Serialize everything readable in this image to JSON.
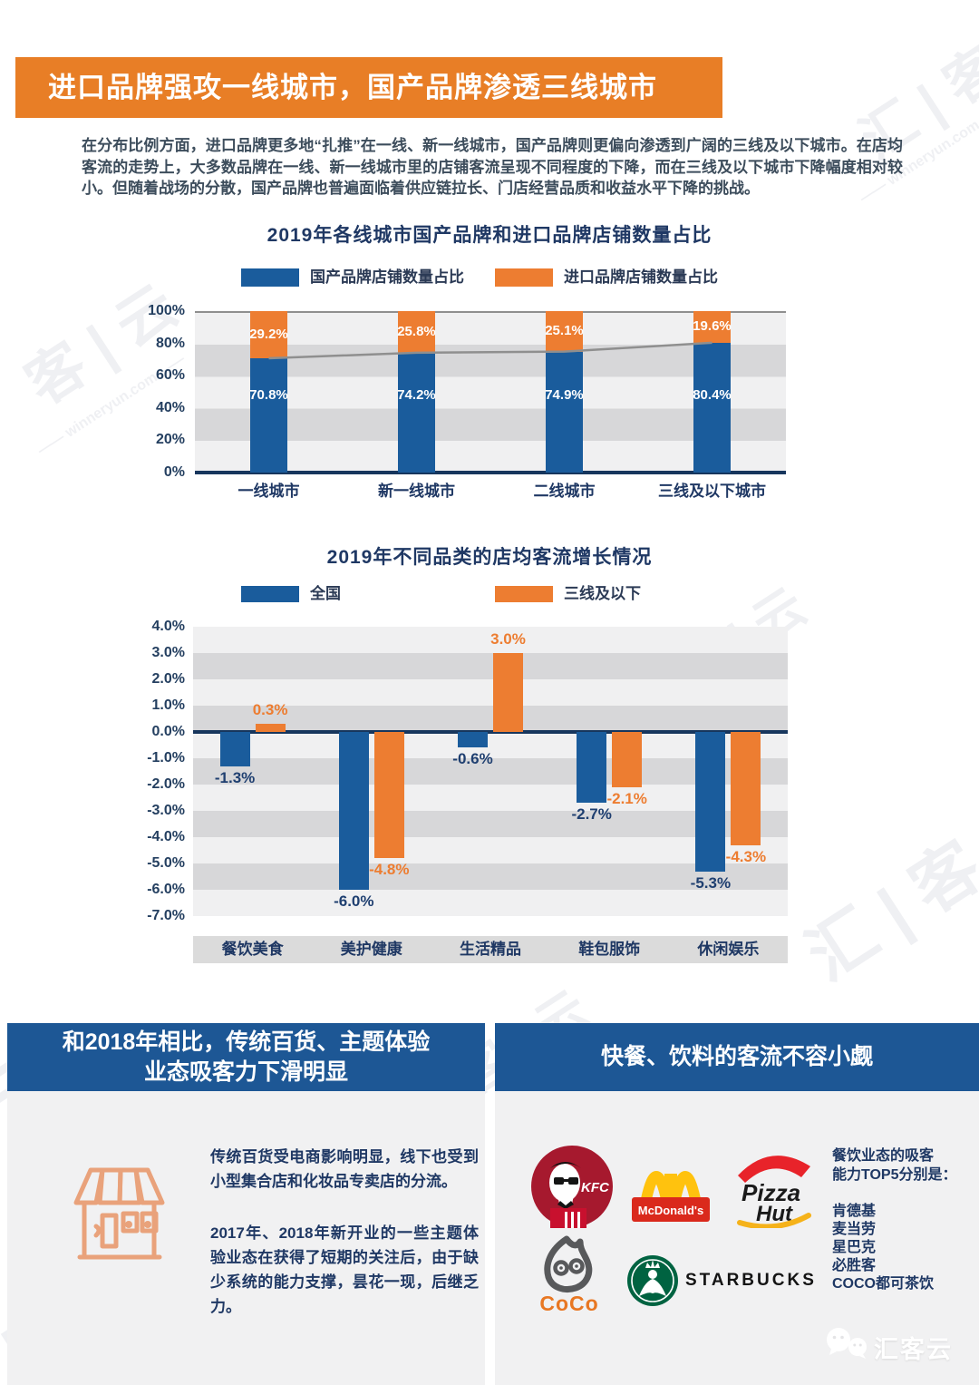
{
  "banner": {
    "title": "进口品牌强攻一线城市，国产品牌渗透三线城市"
  },
  "intro": {
    "text": "在分布比例方面，进口品牌更多地“扎推”在一线、新一线城市，国产品牌则更偏向渗透到广阔的三线及以下城市。在店均客流的走势上，大多数品牌在一线、新一线城市里的店铺客流呈现不同程度的下降，而在三线及以下城市下降幅度相对较小。但随着战场的分散，国产品牌也普遍面临着供应链拉长、门店经营品质和收益水平下降的挑战。"
  },
  "chart_data": [
    {
      "type": "bar",
      "subtype": "stacked-percent",
      "title": "2019年各线城市国产品牌和进口品牌店铺数量占比",
      "categories": [
        "一线城市",
        "新一线城市",
        "二线城市",
        "三线及以下城市"
      ],
      "series": [
        {
          "name": "国产品牌店铺数量占比",
          "color": "#1A5C9C",
          "values": [
            70.8,
            74.2,
            74.9,
            80.4
          ]
        },
        {
          "name": "进口品牌店铺数量占比",
          "color": "#ED7D31",
          "values": [
            29.2,
            25.8,
            25.1,
            19.6
          ]
        }
      ],
      "y_ticks": [
        "100%",
        "80%",
        "60%",
        "40%",
        "20%",
        "0%"
      ],
      "ylim": [
        0,
        100
      ],
      "value_suffix": "%",
      "legend_position": "top",
      "grid": "alternating-band-stripes",
      "overlay_line": {
        "color": "#8F8F8F",
        "follows_series": "国产品牌店铺数量占比"
      }
    },
    {
      "type": "bar",
      "subtype": "grouped",
      "title": "2019年不同品类的店均客流增长情况",
      "categories": [
        "餐饮美食",
        "美护健康",
        "生活精品",
        "鞋包服饰",
        "休闲娱乐"
      ],
      "series": [
        {
          "name": "全国",
          "color": "#1A5C9C",
          "label_color": "#1F3F70",
          "values": [
            -1.3,
            -6.0,
            -0.6,
            -2.7,
            -5.3
          ]
        },
        {
          "name": "三线及以下",
          "color": "#ED7D31",
          "label_color": "#ED7D31",
          "values": [
            0.3,
            -4.8,
            3.0,
            -2.1,
            -4.3
          ]
        }
      ],
      "y_ticks": [
        "4.0%",
        "3.0%",
        "2.0%",
        "1.0%",
        "0.0%",
        "-1.0%",
        "-2.0%",
        "-3.0%",
        "-4.0%",
        "-5.0%",
        "-6.0%",
        "-7.0%"
      ],
      "ylim": [
        -7,
        4
      ],
      "value_suffix": "%",
      "legend_position": "top",
      "grid": "alternating-band-stripes"
    }
  ],
  "sections": {
    "left": {
      "title_line1": "和2018年相比，传统百货、主题体验",
      "title_line2": "业态吸客力下滑明显",
      "paragraph1": "传统百货受电商影响明显，线下也受到小型集合店和化妆品专卖店的分流。",
      "paragraph2": "2017年、2018年新开业的一些主题体验业态在获得了短期的关注后，由于缺少系统的能力支撑，昙花一现，后继乏力。"
    },
    "right": {
      "title": "快餐、饮料的客流不容小觑",
      "intro_line1": "餐饮业态的吸客",
      "intro_line2": "能力TOP5分别是：",
      "top5": [
        "肯德基",
        "麦当劳",
        "星巴克",
        "必胜客",
        "COCO都可茶饮"
      ]
    }
  },
  "brands": {
    "kfc": "KFC",
    "mcdonalds": "McDonald's",
    "pizzahut_line1": "Pizza",
    "pizzahut_line2": "Hut",
    "coco": "CoCo",
    "starbucks": "STARBUCKS"
  },
  "watermark": {
    "brand": "汇客云",
    "site": "winneryun.com",
    "marks": [
      "汇 | 客 | 云",
      "—— winneryun.com ——",
      "云",
      "汇 | 客",
      "客 | 云"
    ]
  },
  "colors": {
    "banner_orange": "#E87E26",
    "header_blue": "#1D5795",
    "bar_blue": "#1A5C9C",
    "bar_orange": "#ED7D31",
    "navy_text": "#1F3864",
    "axis_navy": "#17365D"
  }
}
